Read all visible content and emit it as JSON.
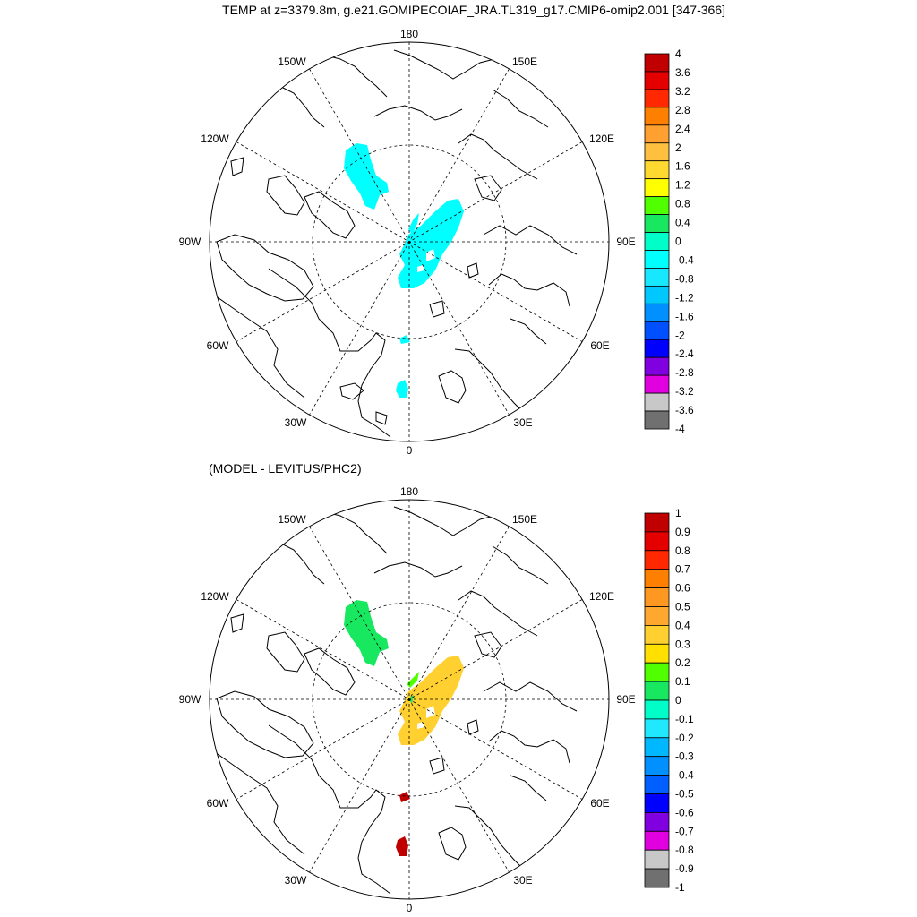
{
  "title": "TEMP at z=3379.8m, g.e21.GOMIPECOIAF_JRA.TL319_g17.CMIP6-omip2.001 [347-366]",
  "subtitle": "(MODEL - LEVITUS/PHC2)",
  "longitude_labels": [
    "180",
    "150E",
    "120E",
    "90E",
    "60E",
    "30E",
    "0",
    "30W",
    "60W",
    "90W",
    "120W",
    "150W"
  ],
  "panels": [
    {
      "name": "model-temperature",
      "colorbar_labels": [
        "4",
        "3.6",
        "3.2",
        "2.8",
        "2.4",
        "2",
        "1.6",
        "1.2",
        "0.8",
        "0.4",
        "0",
        "-0.4",
        "-0.8",
        "-1.2",
        "-1.6",
        "-2",
        "-2.4",
        "-2.8",
        "-3.2",
        "-3.6",
        "-4"
      ],
      "colorbar_colors": [
        "#c00000",
        "#e50000",
        "#ff2800",
        "#ff8000",
        "#ffa030",
        "#ffc040",
        "#ffd830",
        "#ffff00",
        "#50ff00",
        "#18e860",
        "#00ffc8",
        "#00ffff",
        "#18e8ff",
        "#00c8ff",
        "#0090ff",
        "#0050ff",
        "#0000ff",
        "#8000e0",
        "#e000e0",
        "#c8c8c8",
        "#707070"
      ],
      "field_color": "#00ffff"
    },
    {
      "name": "model-minus-levitus",
      "colorbar_labels": [
        "1",
        "0.9",
        "0.8",
        "0.7",
        "0.6",
        "0.5",
        "0.4",
        "0.3",
        "0.2",
        "0.1",
        "0",
        "-0.1",
        "-0.2",
        "-0.3",
        "-0.4",
        "-0.5",
        "-0.6",
        "-0.7",
        "-0.8",
        "-0.9",
        "-1"
      ],
      "colorbar_colors": [
        "#c00000",
        "#e50000",
        "#ff2800",
        "#ff8000",
        "#ff9820",
        "#ffa830",
        "#ffd030",
        "#ffe000",
        "#50ff00",
        "#18e860",
        "#00ffc8",
        "#20e8ff",
        "#00b8ff",
        "#0090ff",
        "#0060ff",
        "#0000ff",
        "#8000e0",
        "#e000e0",
        "#c8c8c8",
        "#707070"
      ],
      "field_colors": {
        "positive_large": "#ffd030",
        "near_zero": "#18e860",
        "small_positive": "#50ff00",
        "strong": "#c00000"
      }
    }
  ]
}
